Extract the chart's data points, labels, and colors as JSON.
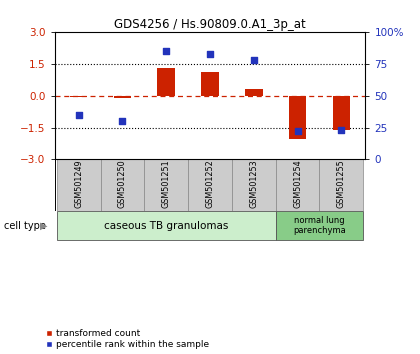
{
  "title": "GDS4256 / Hs.90809.0.A1_3p_at",
  "samples": [
    "GSM501249",
    "GSM501250",
    "GSM501251",
    "GSM501252",
    "GSM501253",
    "GSM501254",
    "GSM501255"
  ],
  "transformed_count": [
    -0.05,
    -0.1,
    1.32,
    1.1,
    0.3,
    -2.05,
    -1.62
  ],
  "percentile_rank": [
    35,
    30,
    85,
    83,
    78,
    22,
    23
  ],
  "ylim_left": [
    -3,
    3
  ],
  "ylim_right": [
    0,
    100
  ],
  "yticks_left": [
    -3,
    -1.5,
    0,
    1.5,
    3
  ],
  "yticks_right": [
    0,
    25,
    50,
    75,
    100
  ],
  "ytick_labels_right": [
    "0",
    "25",
    "50",
    "75",
    "100%"
  ],
  "hlines": [
    -1.5,
    1.5
  ],
  "bar_color": "#cc2200",
  "square_color": "#2233bb",
  "zero_line_color": "#cc2200",
  "cell_type_0_label": "caseous TB granulomas",
  "cell_type_0_color": "#cceecc",
  "cell_type_1_label": "normal lung\nparenchyma",
  "cell_type_1_color": "#88cc88",
  "legend_bar_label": "transformed count",
  "legend_sq_label": "percentile rank within the sample",
  "cell_type_label": "cell type",
  "bg_color": "#ffffff",
  "tick_label_color_left": "#cc2200",
  "tick_label_color_right": "#2233bb",
  "sample_box_color": "#cccccc",
  "sample_box_edge": "#888888"
}
